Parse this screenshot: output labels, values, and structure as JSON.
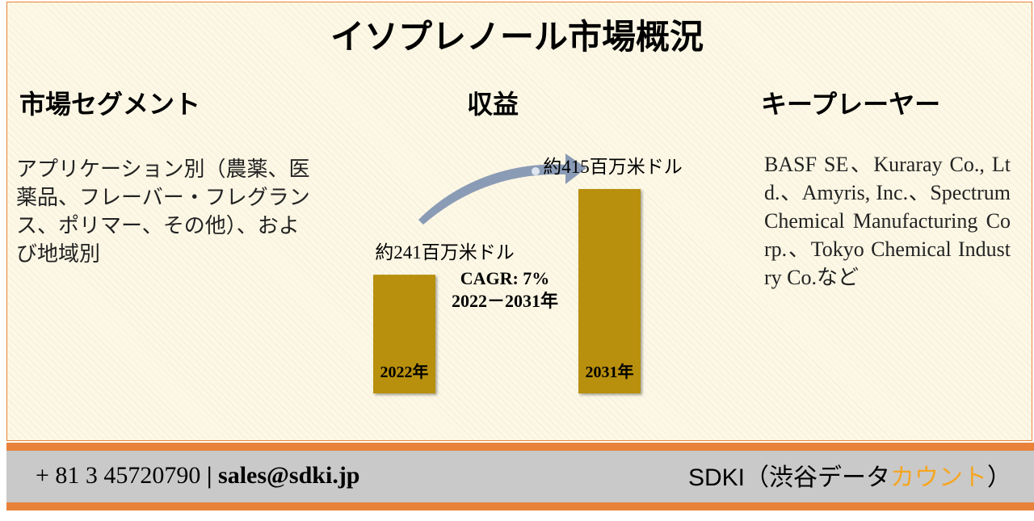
{
  "title": "イソプレノール市場概況",
  "segment": {
    "heading": "市場セグメント",
    "text": "アプリケーション別（農薬、医薬品、フレーバー・フレグランス、ポリマー、その他）、および地域別"
  },
  "revenue": {
    "heading": "収益",
    "categories": [
      "2022年",
      "2031年"
    ],
    "values": [
      241,
      415
    ],
    "value_labels": [
      "約241百万米ドル",
      "約415百万米ドル"
    ],
    "cagr": "CAGR: 7%",
    "period": "2022－2031年",
    "color": "#b8900a"
  },
  "players": {
    "heading": "キープレーヤー",
    "text": "BASF SE、Kuraray Co., Ltd.、Amyris, Inc.、Spectrum Chemical Manufacturing Corp.、Tokyo Chemical Industry Co.など"
  },
  "footer": {
    "phone": "+ 81 3 45720790",
    "separator": "|",
    "email": "sales@sdki.jp",
    "brand": "SDKI（渋谷データ",
    "brand_accent": "カウント",
    "brand_end": "）"
  }
}
